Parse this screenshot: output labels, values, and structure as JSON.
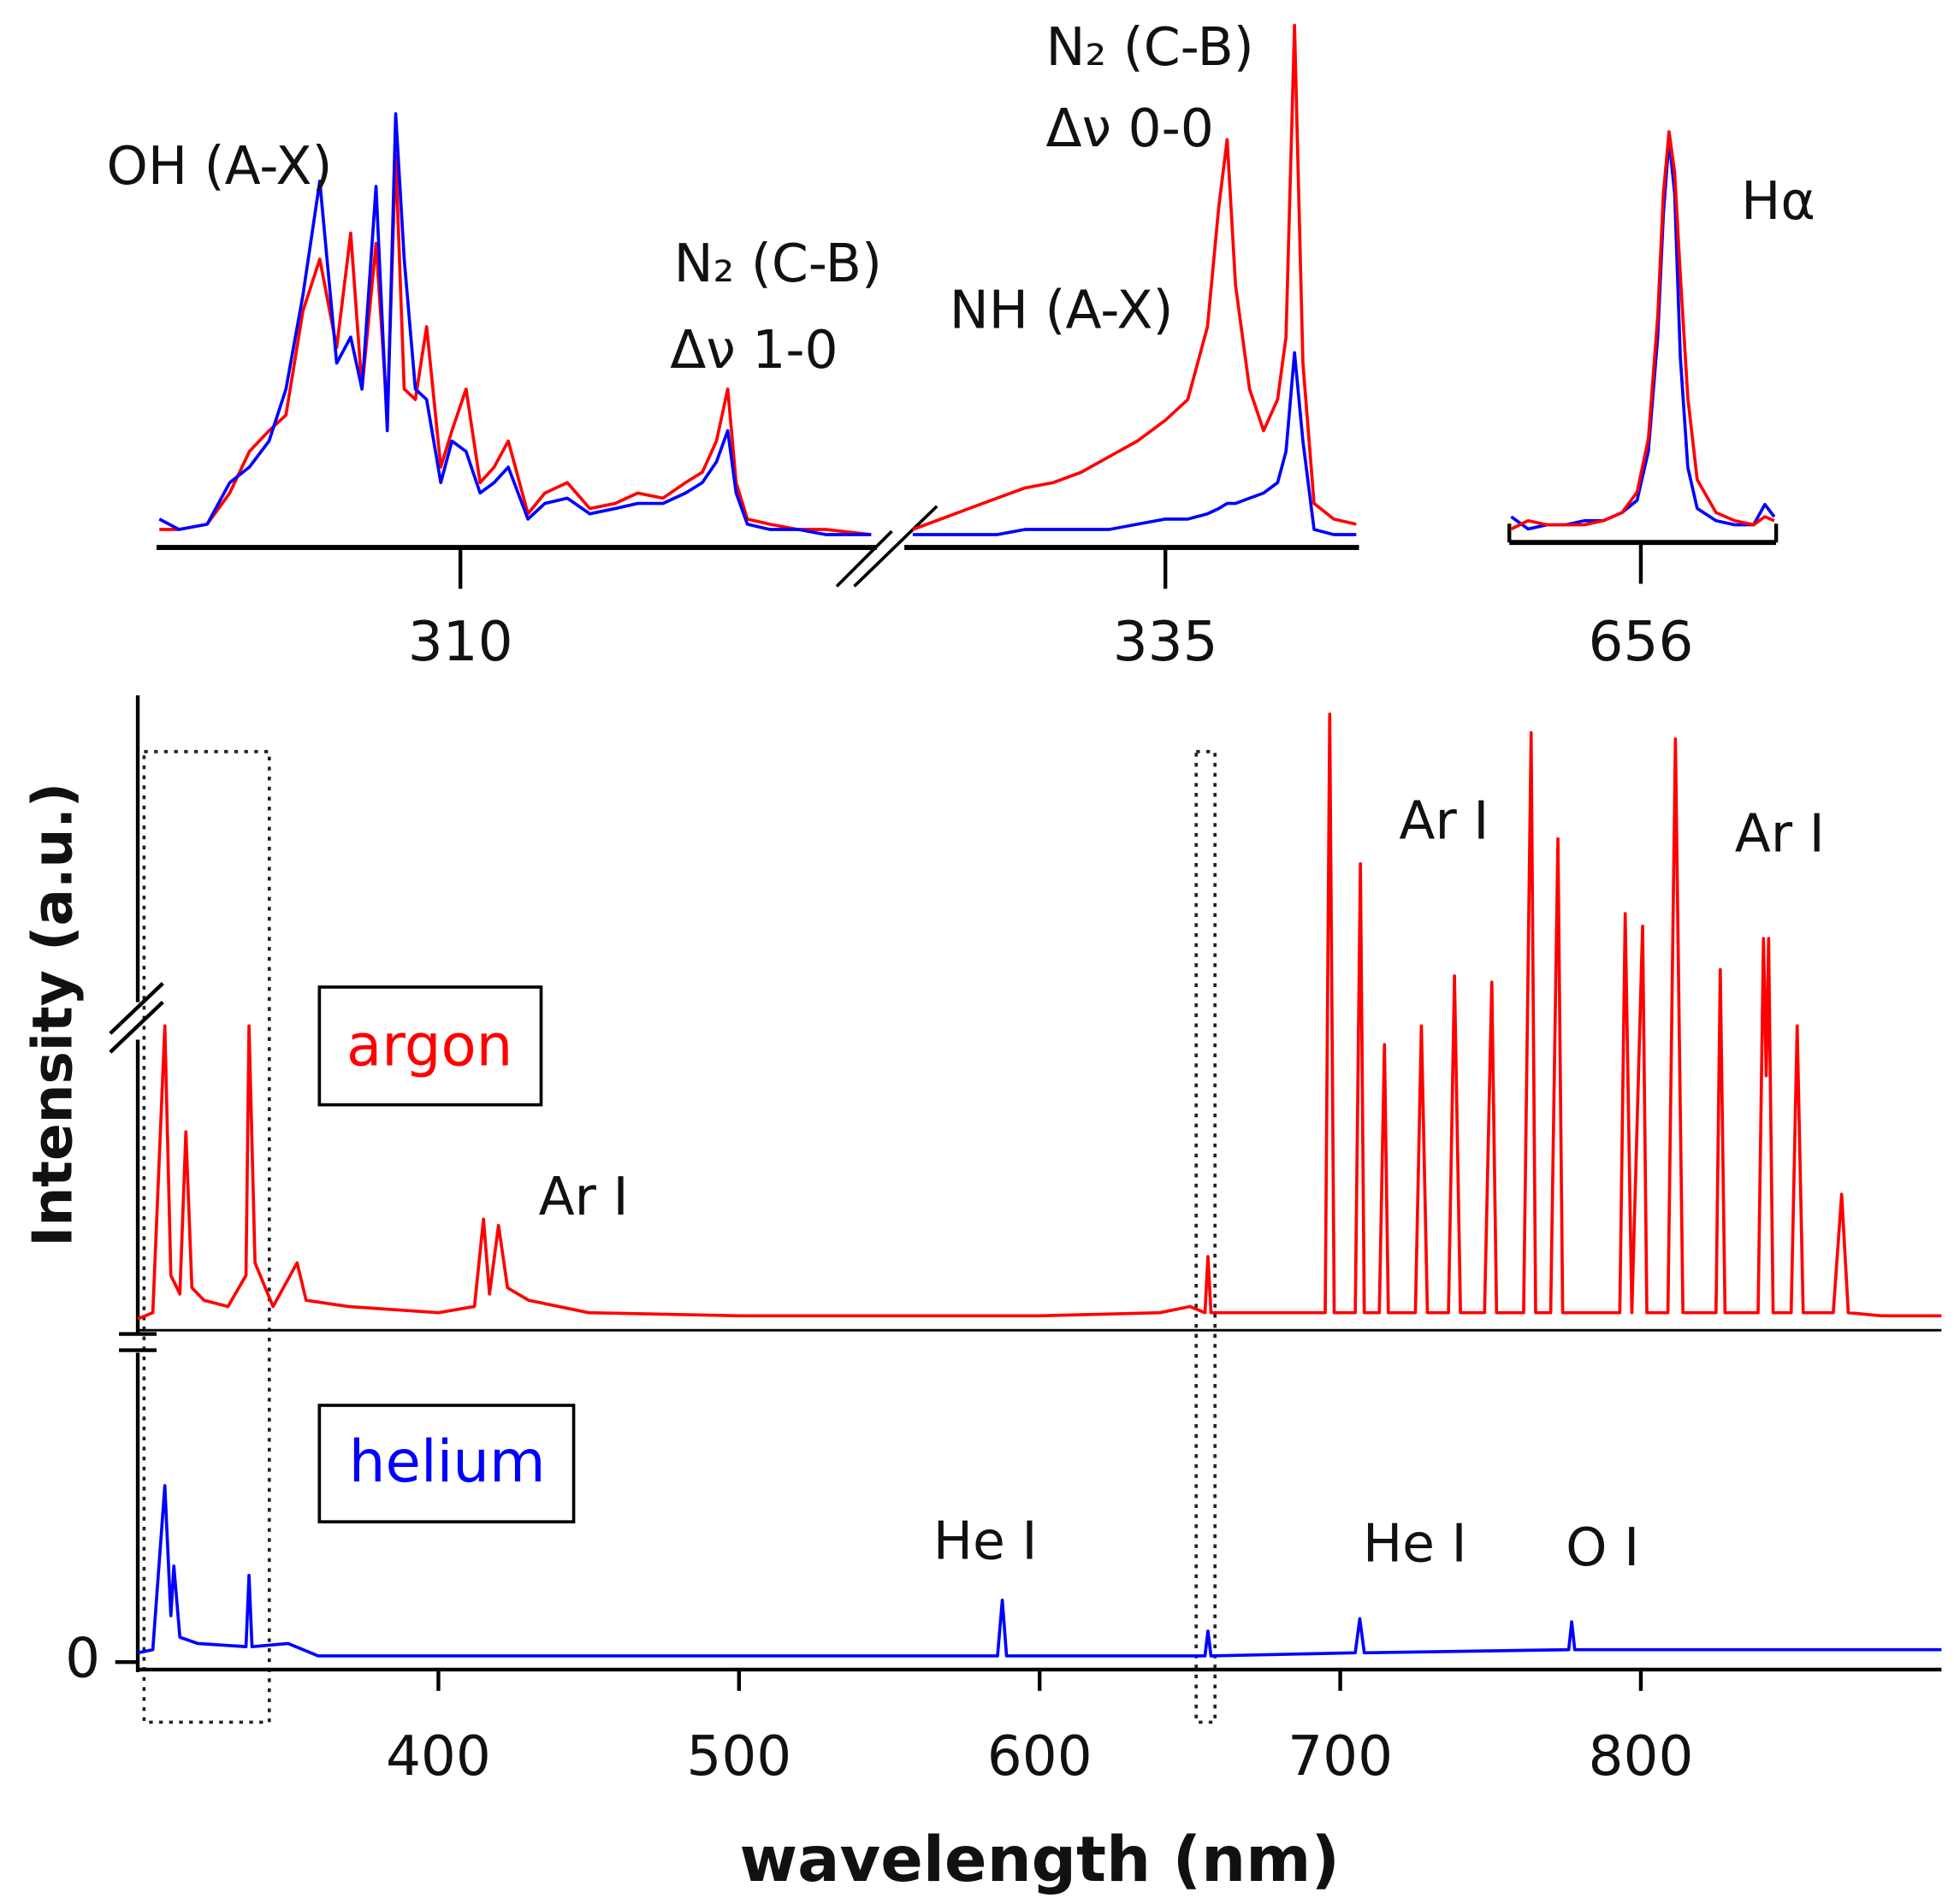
{
  "chart_data": [
    {
      "type": "line",
      "xlim": [
        300,
        900
      ],
      "ylim": [
        0,
        100
      ],
      "series": [
        {
          "name": "argon",
          "color": "#ff0000",
          "x": [
            300,
            305,
            309,
            311,
            314,
            316,
            318,
            322,
            330,
            336,
            337,
            339,
            345,
            353,
            356,
            370,
            400,
            412,
            415,
            417,
            420,
            423,
            430,
            450,
            500,
            600,
            640,
            650,
            655,
            656,
            657,
            665,
            690,
            695,
            696.5,
            698,
            705,
            706.7,
            708,
            713,
            714.7,
            716,
            725,
            727,
            729,
            736,
            738,
            740,
            748,
            750.4,
            752,
            761,
            763.5,
            765,
            770,
            772.4,
            774,
            793,
            794.8,
            797,
            800.6,
            802,
            809,
            811.5,
            814,
            825,
            826.4,
            828,
            839,
            840.8,
            841.7,
            842.5,
            844,
            850,
            852,
            854,
            864,
            866.8,
            869,
            880,
            900
          ],
          "values": [
            1,
            2,
            48,
            8,
            5,
            31,
            6,
            4,
            3,
            8,
            48,
            10,
            3,
            10,
            4,
            3,
            2,
            3,
            17,
            5,
            16,
            6,
            4,
            2,
            1.5,
            1.5,
            2,
            3,
            2,
            11,
            2,
            2,
            2,
            2,
            98,
            2,
            2,
            74,
            2,
            2,
            45,
            2,
            2,
            48,
            2,
            2,
            56,
            2,
            2,
            55,
            2,
            2,
            95,
            2,
            2,
            78,
            2,
            2,
            66,
            2,
            64,
            2,
            2,
            94,
            2,
            2,
            57,
            2,
            2,
            62,
            40,
            62,
            2,
            2,
            48,
            2,
            2,
            21,
            2,
            1.5,
            1.5
          ]
        }
      ],
      "annotations": [
        "Ar I",
        "Ar I",
        "Ar I"
      ]
    },
    {
      "type": "line",
      "x_label": "wavelength (nm)",
      "y_label": "Intensity (a.u.)",
      "xlim": [
        300,
        900
      ],
      "xticks": [
        400,
        500,
        600,
        700,
        800
      ],
      "ylim": [
        0,
        100
      ],
      "yticks": [
        0
      ],
      "series": [
        {
          "name": "helium",
          "color": "#0000ff",
          "x": [
            300,
            305,
            309,
            311,
            312,
            314,
            320,
            336,
            337,
            338,
            350,
            360,
            500,
            586,
            587.6,
            589,
            655,
            656,
            657,
            705,
            706.5,
            708,
            776,
            777,
            778,
            890,
            900
          ],
          "values": [
            3,
            4,
            57,
            15,
            31,
            8,
            6,
            5,
            28,
            5,
            6,
            2,
            2,
            2,
            20,
            2,
            2,
            10,
            2,
            3,
            14,
            3,
            4,
            13,
            4,
            4,
            4
          ]
        }
      ],
      "annotations": [
        "He I",
        "He I",
        "O I"
      ]
    },
    {
      "type": "line",
      "xlim": [
        299.2,
        324.8
      ],
      "xticks": [
        310
      ],
      "ylim": [
        0,
        100
      ],
      "series": [
        {
          "color": "#ff0000",
          "x": [
            299.3,
            300,
            301,
            301.8,
            302.5,
            303.2,
            303.8,
            304.4,
            305.0,
            305.6,
            306.1,
            306.5,
            307.0,
            307.4,
            307.7,
            308.0,
            308.4,
            308.8,
            309.3,
            309.7,
            310.2,
            310.7,
            311.2,
            311.7,
            312.4,
            313.0,
            313.8,
            314.6,
            315.5,
            316.3,
            317.2,
            318.0,
            318.6,
            319.1,
            319.5,
            319.8,
            320.2,
            321.0,
            322.0,
            323.0,
            324.6
          ],
          "values": [
            3,
            3,
            4,
            10,
            18,
            22,
            25,
            45,
            55,
            38,
            60,
            30,
            58,
            25,
            75,
            30,
            28,
            42,
            15,
            22,
            30,
            12,
            15,
            20,
            6,
            10,
            12,
            7,
            8,
            10,
            9,
            12,
            14,
            20,
            30,
            12,
            5,
            4,
            3,
            3,
            2
          ]
        },
        {
          "color": "#0000ff",
          "x": [
            299.3,
            300,
            301,
            301.8,
            302.5,
            303.2,
            303.8,
            304.4,
            305.0,
            305.6,
            306.1,
            306.5,
            307.0,
            307.4,
            307.7,
            308.0,
            308.4,
            308.8,
            309.3,
            309.7,
            310.2,
            310.7,
            311.2,
            311.7,
            312.4,
            313.0,
            313.8,
            314.6,
            315.5,
            316.3,
            317.2,
            318.0,
            318.6,
            319.1,
            319.5,
            319.8,
            320.2,
            321.0,
            322.0,
            323.0,
            324.6
          ],
          "values": [
            5,
            3,
            4,
            12,
            15,
            20,
            30,
            48,
            70,
            35,
            40,
            30,
            69,
            22,
            83,
            55,
            30,
            28,
            12,
            20,
            18,
            10,
            12,
            15,
            5,
            8,
            9,
            6,
            7,
            8,
            8,
            10,
            12,
            16,
            22,
            10,
            4,
            3,
            3,
            2,
            2
          ]
        }
      ],
      "annotations": [
        "OH (A-X)",
        "N₂ (C-B)",
        "Δν 1-0"
      ]
    },
    {
      "type": "line",
      "xlim": [
        325.7,
        341.9
      ],
      "xticks": [
        335
      ],
      "ylim": [
        0,
        100
      ],
      "series": [
        {
          "color": "#ff0000",
          "x": [
            326,
            327,
            328,
            329,
            330,
            331,
            332,
            333,
            334,
            335,
            335.8,
            336.5,
            336.9,
            337.2,
            337.5,
            338.0,
            338.5,
            339.0,
            339.3,
            339.6,
            339.9,
            340.3,
            341,
            341.8
          ],
          "values": [
            3,
            5,
            7,
            9,
            11,
            12,
            14,
            17,
            20,
            24,
            28,
            42,
            65,
            78,
            50,
            30,
            22,
            28,
            40,
            100,
            35,
            8,
            5,
            4
          ]
        },
        {
          "color": "#0000ff",
          "x": [
            326,
            327,
            328,
            329,
            330,
            331,
            332,
            333,
            334,
            335,
            335.8,
            336.5,
            336.9,
            337.2,
            337.5,
            338.0,
            338.5,
            339.0,
            339.3,
            339.6,
            339.9,
            340.3,
            341,
            341.8
          ],
          "values": [
            2,
            2,
            2,
            2,
            3,
            3,
            3,
            3,
            4,
            5,
            5,
            6,
            7,
            8,
            8,
            9,
            10,
            12,
            18,
            37,
            20,
            3,
            2,
            2
          ]
        }
      ],
      "annotations": [
        "NH (A-X)",
        "N₂ (C-B)",
        "Δν 0-0"
      ]
    },
    {
      "type": "line",
      "xlim": [
        649,
        663.2
      ],
      "xticks": [
        656
      ],
      "ylim": [
        0,
        100
      ],
      "series": [
        {
          "color": "#0000ff",
          "x": [
            649.1,
            650,
            651,
            652,
            653,
            654,
            655,
            655.8,
            656.4,
            656.9,
            657.2,
            657.5,
            657.8,
            658.1,
            658.5,
            659,
            660,
            661,
            662,
            662.6,
            663.1
          ],
          "values": [
            6,
            3,
            4,
            4,
            5,
            5,
            7,
            10,
            22,
            50,
            80,
            98,
            85,
            45,
            18,
            8,
            5,
            4,
            4,
            9,
            6
          ]
        },
        {
          "color": "#ff0000",
          "x": [
            649.1,
            650,
            651,
            652,
            653,
            654,
            655,
            655.8,
            656.4,
            656.9,
            657.2,
            657.5,
            657.8,
            658.1,
            658.5,
            659,
            660,
            661,
            662,
            662.6,
            663.1
          ],
          "values": [
            3,
            5,
            4,
            4,
            4,
            5,
            7,
            12,
            25,
            55,
            85,
            100,
            90,
            65,
            35,
            15,
            7,
            5,
            4,
            6,
            5
          ]
        }
      ],
      "annotations": [
        "Hα"
      ]
    }
  ]
}
